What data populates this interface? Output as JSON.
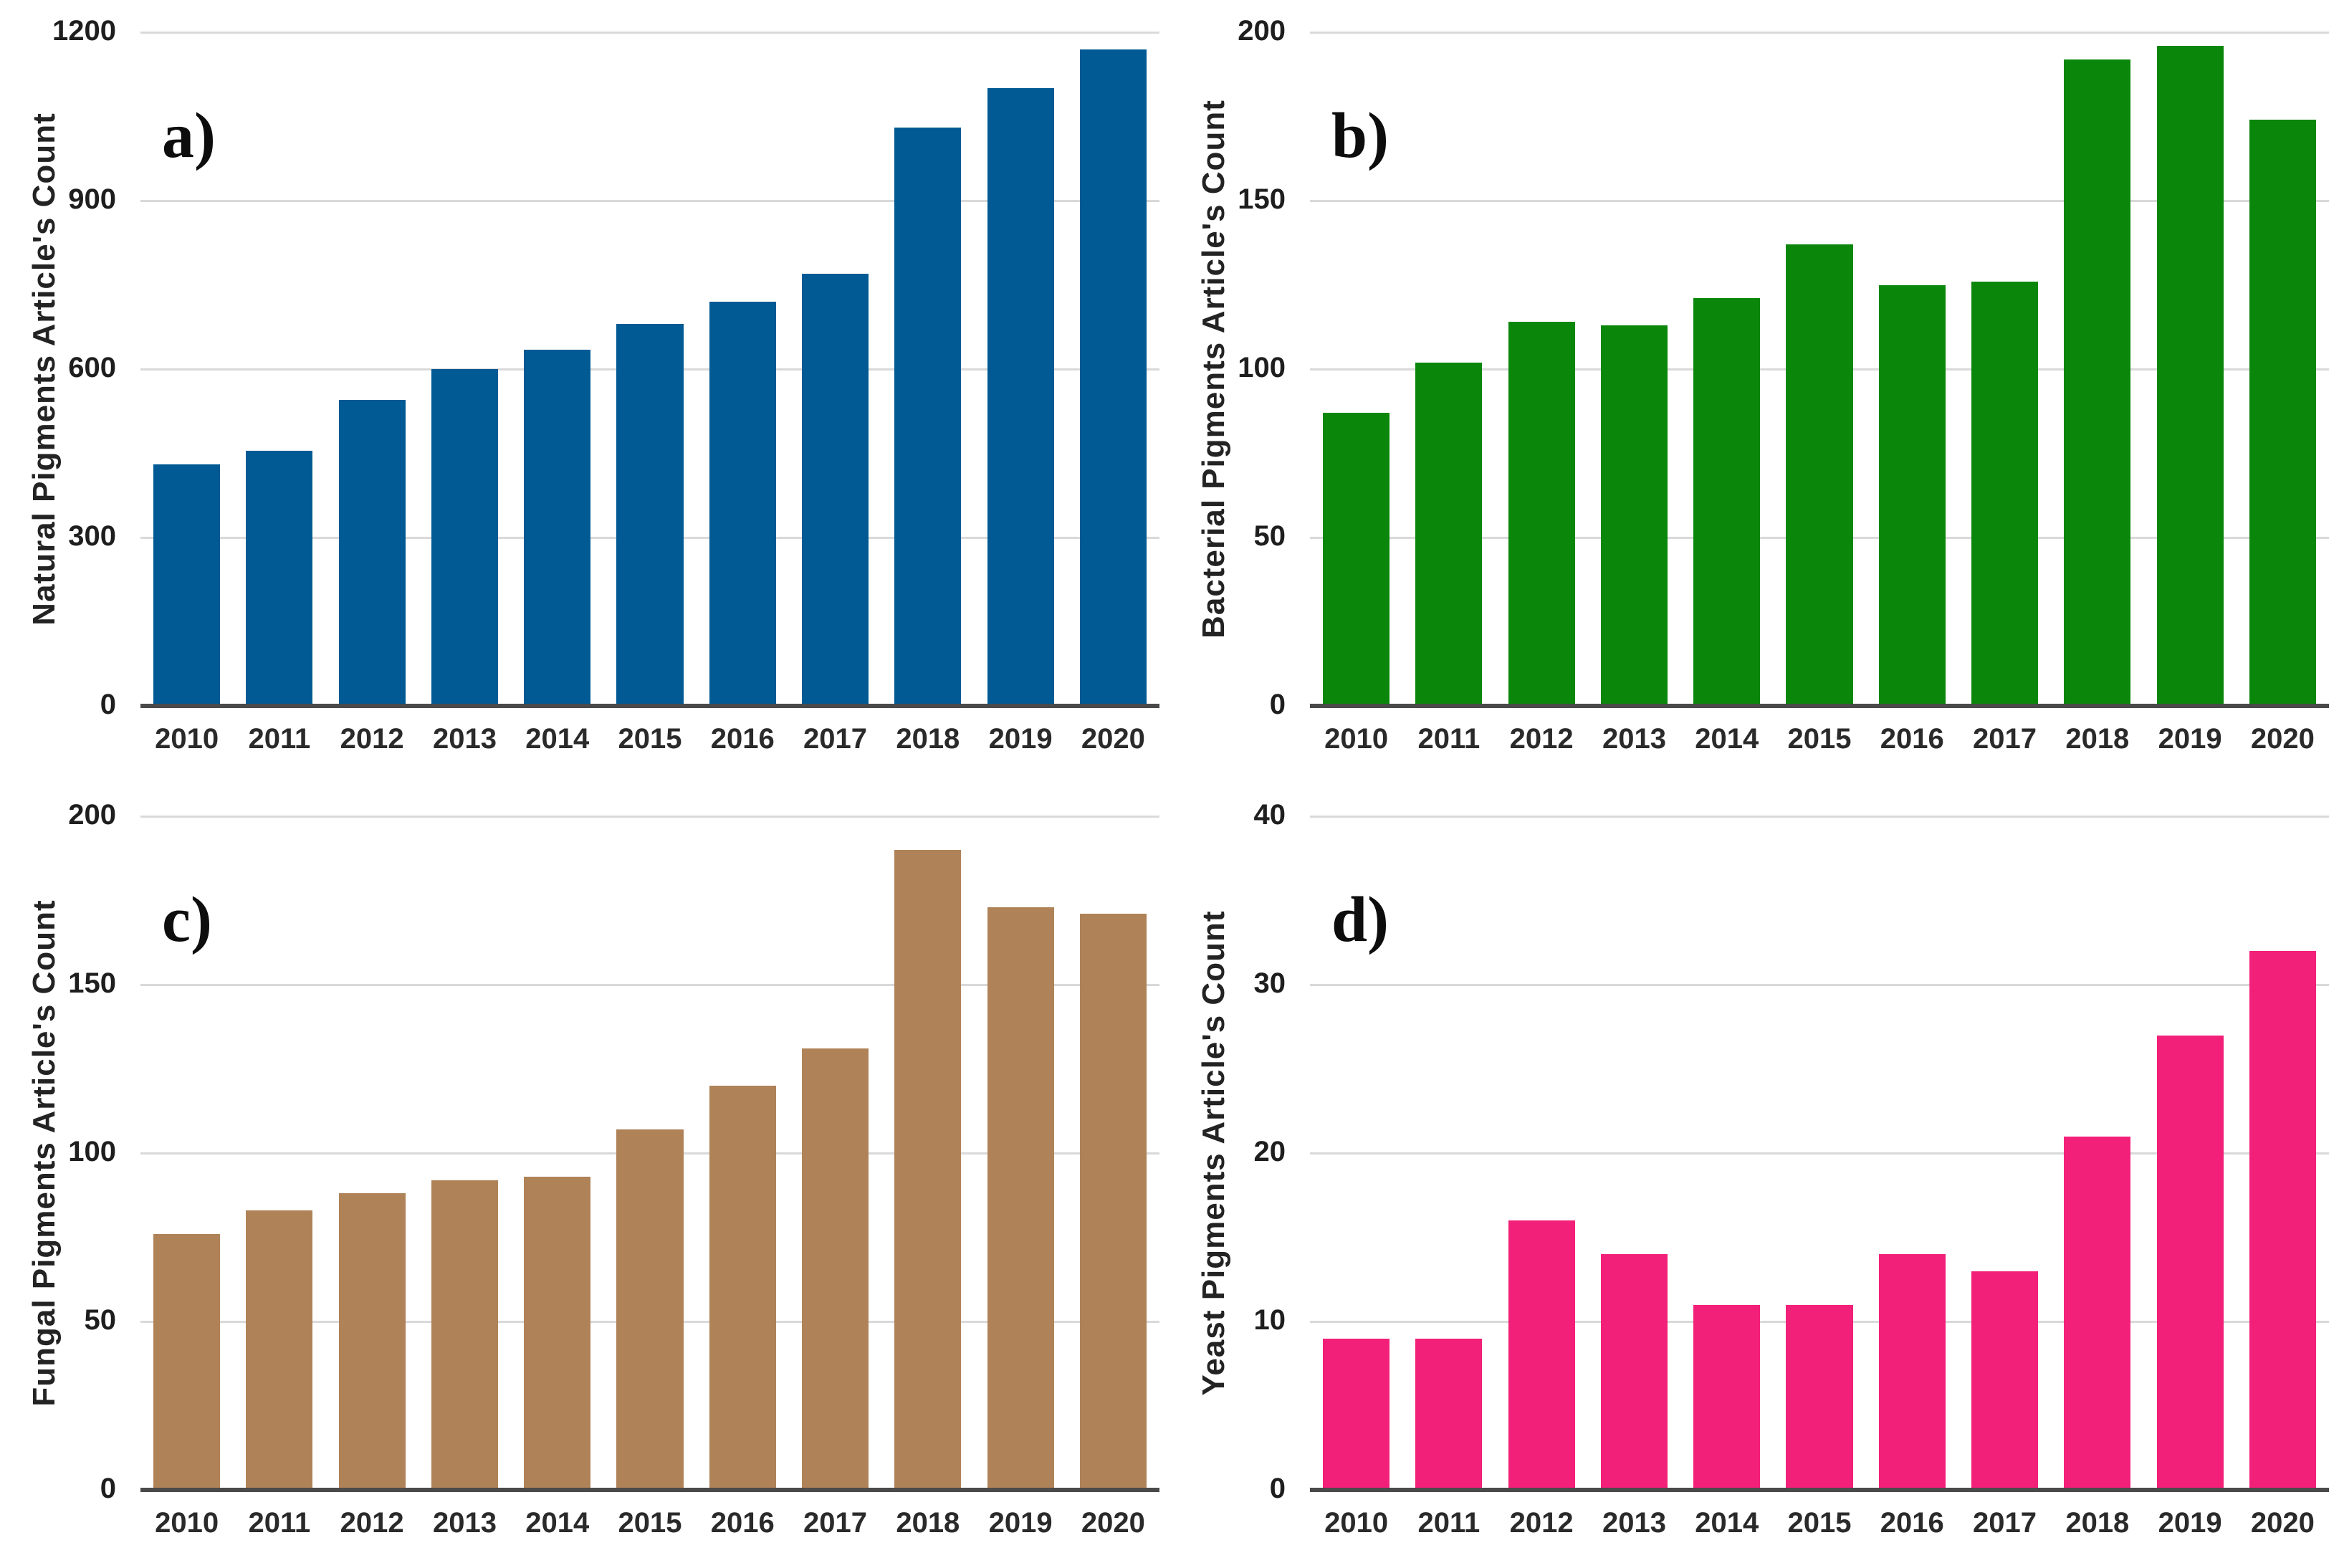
{
  "figure": {
    "background": "#ffffff",
    "grid_color": "#d9d9d9",
    "axis_line_color": "#4a4a4a",
    "text_color": "#232323"
  },
  "chart_data": [
    {
      "id": "a",
      "type": "bar",
      "panel_label": "a)",
      "ylabel": "Natural Pigments Article's Count",
      "xlabel": "",
      "bar_color": "#015a93",
      "categories": [
        "2010",
        "2011",
        "2012",
        "2013",
        "2014",
        "2015",
        "2016",
        "2017",
        "2018",
        "2019",
        "2020"
      ],
      "values": [
        430,
        455,
        545,
        600,
        635,
        680,
        720,
        770,
        1030,
        1100,
        1170
      ],
      "ylim": [
        0,
        1200
      ],
      "yticks": [
        0,
        300,
        600,
        900,
        1200
      ],
      "grid": true,
      "legend_position": "none"
    },
    {
      "id": "b",
      "type": "bar",
      "panel_label": "b)",
      "ylabel": "Bacterial Pigments Article's Count",
      "xlabel": "",
      "bar_color": "#0a870a",
      "categories": [
        "2010",
        "2011",
        "2012",
        "2013",
        "2014",
        "2015",
        "2016",
        "2017",
        "2018",
        "2019",
        "2020"
      ],
      "values": [
        87,
        102,
        114,
        113,
        121,
        137,
        125,
        126,
        192,
        196,
        174
      ],
      "ylim": [
        0,
        200
      ],
      "yticks": [
        0,
        50,
        100,
        150,
        200
      ],
      "grid": true,
      "legend_position": "none"
    },
    {
      "id": "c",
      "type": "bar",
      "panel_label": "c)",
      "ylabel": "Fungal Pigments Article's Count",
      "xlabel": "",
      "bar_color": "#b08258",
      "categories": [
        "2010",
        "2011",
        "2012",
        "2013",
        "2014",
        "2015",
        "2016",
        "2017",
        "2018",
        "2019",
        "2020"
      ],
      "values": [
        76,
        83,
        88,
        92,
        93,
        107,
        120,
        131,
        190,
        173,
        171
      ],
      "ylim": [
        0,
        200
      ],
      "yticks": [
        0,
        50,
        100,
        150,
        200
      ],
      "grid": true,
      "legend_position": "none"
    },
    {
      "id": "d",
      "type": "bar",
      "panel_label": "d)",
      "ylabel": "Yeast Pigments Article's Count",
      "xlabel": "",
      "bar_color": "#f32079",
      "categories": [
        "2010",
        "2011",
        "2012",
        "2013",
        "2014",
        "2015",
        "2016",
        "2017",
        "2018",
        "2019",
        "2020"
      ],
      "values": [
        9,
        9,
        16,
        14,
        11,
        11,
        14,
        13,
        21,
        27,
        32
      ],
      "ylim": [
        0,
        40
      ],
      "yticks": [
        0,
        10,
        20,
        30,
        40
      ],
      "grid": true,
      "legend_position": "none"
    }
  ]
}
